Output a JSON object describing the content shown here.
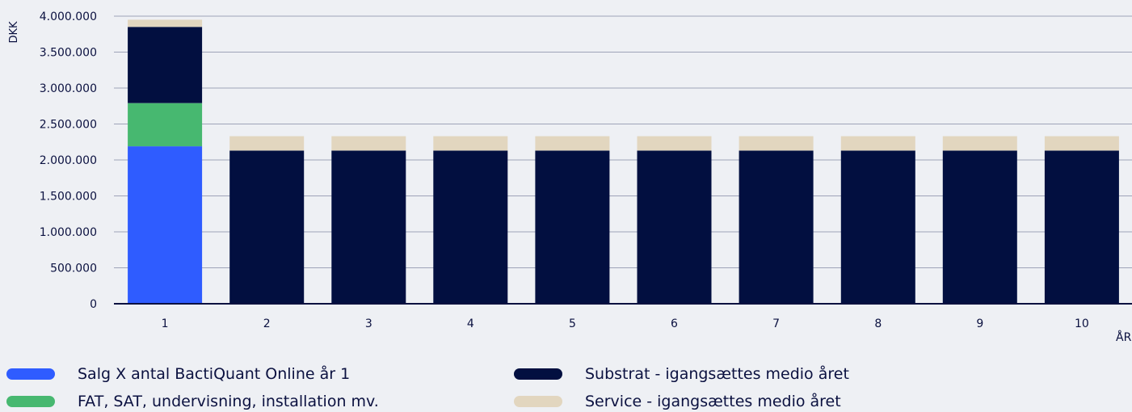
{
  "chart_data": {
    "type": "bar",
    "stacked": true,
    "ylabel": "DKK",
    "xlabel": "ÅR",
    "ylim": [
      0,
      4000000
    ],
    "ytick_step": 500000,
    "ytick_labels": [
      "0",
      "500.000",
      "1.000.000",
      "1.500.000",
      "2.000.000",
      "2.500.000",
      "3.000.000",
      "3.500.000",
      "4.000.000"
    ],
    "categories": [
      "1",
      "2",
      "3",
      "4",
      "5",
      "6",
      "7",
      "8",
      "9",
      "10"
    ],
    "grid": true,
    "legend_position": "bottom",
    "series": [
      {
        "name": "Salg X antal BactiQuant Online år 1",
        "color": "#2f5cff",
        "values": [
          2190000,
          0,
          0,
          0,
          0,
          0,
          0,
          0,
          0,
          0
        ]
      },
      {
        "name": "FAT, SAT, undervisning, installation mv.",
        "color": "#47b870",
        "values": [
          600000,
          0,
          0,
          0,
          0,
          0,
          0,
          0,
          0,
          0
        ]
      },
      {
        "name": "Substrat - igangsættes medio året",
        "color": "#020f40",
        "values": [
          1060000,
          2130000,
          2130000,
          2130000,
          2130000,
          2130000,
          2130000,
          2130000,
          2130000,
          2130000
        ]
      },
      {
        "name": "Service - igangsættes medio året",
        "color": "#e2d6bf",
        "values": [
          100000,
          200000,
          200000,
          200000,
          200000,
          200000,
          200000,
          200000,
          200000,
          200000
        ]
      }
    ]
  }
}
